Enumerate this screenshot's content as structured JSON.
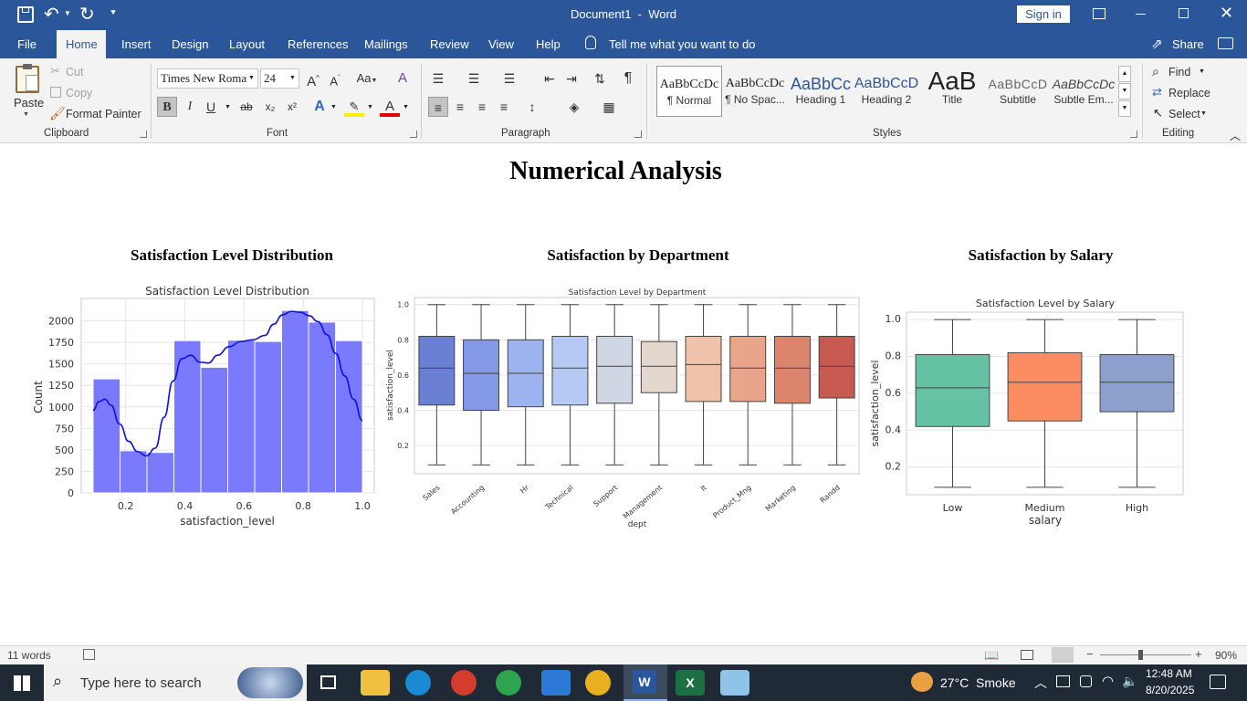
{
  "titlebar": {
    "title": "Document1  -  Word",
    "sign_in": "Sign in"
  },
  "tabs": [
    "File",
    "Home",
    "Insert",
    "Design",
    "Layout",
    "References",
    "Mailings",
    "Review",
    "View",
    "Help"
  ],
  "tell_me": "Tell me what you want to do",
  "share": "Share",
  "clipboard": {
    "paste": "Paste",
    "cut": "Cut",
    "copy": "Copy",
    "format_painter": "Format Painter",
    "label": "Clipboard"
  },
  "font": {
    "name": "Times New Roma",
    "size": "24",
    "label": "Font",
    "grow": "A^",
    "shrink": "Aˇ",
    "case": "Aa",
    "bold": "B",
    "italic": "I",
    "underline": "U",
    "strike": "ab",
    "sub": "x₂",
    "sup": "x²"
  },
  "paragraph": {
    "label": "Paragraph"
  },
  "styles": {
    "label": "Styles",
    "items": [
      {
        "preview": "AaBbCcDc",
        "name": "¶ Normal"
      },
      {
        "preview": "AaBbCcDc",
        "name": "¶ No Spac..."
      },
      {
        "preview": "AaBbCc",
        "name": "Heading 1"
      },
      {
        "preview": "AaBbCcD",
        "name": "Heading 2"
      },
      {
        "preview": "AaB",
        "name": "Title"
      },
      {
        "preview": "AaBbCcD",
        "name": "Subtitle"
      },
      {
        "preview": "AaBbCcDc",
        "name": "Subtle Em..."
      }
    ]
  },
  "editing": {
    "label": "Editing",
    "find": "Find",
    "replace": "Replace",
    "select": "Select"
  },
  "document": {
    "heading": "Numerical Analysis",
    "sections": [
      "Satisfaction Level Distribution",
      "Satisfaction by Department",
      "Satisfaction by Salary"
    ]
  },
  "status": {
    "words": "11 words",
    "zoom": "90%"
  },
  "taskbar": {
    "search": "Type here to search",
    "weather": "27°C  Smoke",
    "time": "12:48 AM",
    "date": "8/20/2025"
  },
  "colors": {
    "accent": "#2b579a",
    "hist": "#7a7aff",
    "kde": "#1010e0"
  },
  "chart_data": [
    {
      "type": "bar",
      "title": "Satisfaction Level Distribution",
      "xlabel": "satisfaction_level",
      "ylabel": "Count",
      "bin_edges": [
        0.09,
        0.181,
        0.272,
        0.363,
        0.454,
        0.545,
        0.636,
        0.727,
        0.818,
        0.909,
        1.0
      ],
      "values": [
        1325,
        490,
        470,
        1770,
        1460,
        1775,
        1760,
        2120,
        1985,
        1770
      ],
      "kde": [
        [
          0.09,
          960
        ],
        [
          0.11,
          1060
        ],
        [
          0.13,
          1090
        ],
        [
          0.15,
          1020
        ],
        [
          0.18,
          800
        ],
        [
          0.21,
          600
        ],
        [
          0.24,
          480
        ],
        [
          0.27,
          430
        ],
        [
          0.3,
          520
        ],
        [
          0.33,
          880
        ],
        [
          0.36,
          1300
        ],
        [
          0.39,
          1560
        ],
        [
          0.42,
          1600
        ],
        [
          0.45,
          1520
        ],
        [
          0.48,
          1510
        ],
        [
          0.51,
          1600
        ],
        [
          0.55,
          1700
        ],
        [
          0.59,
          1760
        ],
        [
          0.63,
          1780
        ],
        [
          0.67,
          1830
        ],
        [
          0.7,
          1960
        ],
        [
          0.73,
          2070
        ],
        [
          0.76,
          2110
        ],
        [
          0.79,
          2100
        ],
        [
          0.82,
          2060
        ],
        [
          0.85,
          1990
        ],
        [
          0.88,
          1840
        ],
        [
          0.91,
          1620
        ],
        [
          0.94,
          1360
        ],
        [
          0.97,
          1090
        ],
        [
          1.0,
          840
        ]
      ],
      "xlim": [
        0.05,
        1.04
      ],
      "ylim": [
        0,
        2260
      ],
      "xticks": [
        "0.2",
        "0.4",
        "0.6",
        "0.8",
        "1.0"
      ],
      "yticks": [
        "0",
        "250",
        "500",
        "750",
        "1000",
        "1250",
        "1500",
        "1750",
        "2000"
      ],
      "grid": true
    },
    {
      "type": "box",
      "title": "Satisfaction Level by Department",
      "xlabel": "dept",
      "ylabel": "satisfaction_level",
      "ylim": [
        0.04,
        1.04
      ],
      "yticks": [
        "0.2",
        "0.4",
        "0.6",
        "0.8",
        "1.0"
      ],
      "categories": [
        "Sales",
        "Accounting",
        "Hr",
        "Technical",
        "Support",
        "Management",
        "It",
        "Product_Mng",
        "Marketing",
        "Randd"
      ],
      "boxes": [
        {
          "min": 0.09,
          "q1": 0.43,
          "median": 0.64,
          "q3": 0.82,
          "max": 1.0,
          "color": "#6b7fd4"
        },
        {
          "min": 0.09,
          "q1": 0.4,
          "median": 0.61,
          "q3": 0.8,
          "max": 1.0,
          "color": "#8499e6"
        },
        {
          "min": 0.09,
          "q1": 0.42,
          "median": 0.61,
          "q3": 0.8,
          "max": 1.0,
          "color": "#9db3f0"
        },
        {
          "min": 0.09,
          "q1": 0.43,
          "median": 0.64,
          "q3": 0.82,
          "max": 1.0,
          "color": "#b6c9f4"
        },
        {
          "min": 0.09,
          "q1": 0.44,
          "median": 0.65,
          "q3": 0.82,
          "max": 1.0,
          "color": "#d0d6e4"
        },
        {
          "min": 0.09,
          "q1": 0.5,
          "median": 0.65,
          "q3": 0.79,
          "max": 1.0,
          "color": "#e4d7ce"
        },
        {
          "min": 0.09,
          "q1": 0.45,
          "median": 0.66,
          "q3": 0.82,
          "max": 1.0,
          "color": "#eec3aa"
        },
        {
          "min": 0.09,
          "q1": 0.45,
          "median": 0.64,
          "q3": 0.82,
          "max": 1.0,
          "color": "#e8a589"
        },
        {
          "min": 0.09,
          "q1": 0.44,
          "median": 0.64,
          "q3": 0.82,
          "max": 1.0,
          "color": "#dc856d"
        },
        {
          "min": 0.09,
          "q1": 0.47,
          "median": 0.65,
          "q3": 0.82,
          "max": 1.0,
          "color": "#c65950"
        }
      ],
      "grid": true
    },
    {
      "type": "box",
      "title": "Satisfaction Level by Salary",
      "xlabel": "salary",
      "ylabel": "satisfaction_level",
      "ylim": [
        0.05,
        1.04
      ],
      "yticks": [
        "0.2",
        "0.4",
        "0.6",
        "0.8",
        "1.0"
      ],
      "categories": [
        "Low",
        "Medium",
        "High"
      ],
      "boxes": [
        {
          "min": 0.09,
          "q1": 0.42,
          "median": 0.63,
          "q3": 0.81,
          "max": 1.0,
          "color": "#66c2a5"
        },
        {
          "min": 0.09,
          "q1": 0.45,
          "median": 0.66,
          "q3": 0.82,
          "max": 1.0,
          "color": "#fc8d62"
        },
        {
          "min": 0.09,
          "q1": 0.5,
          "median": 0.66,
          "q3": 0.81,
          "max": 1.0,
          "color": "#8da0cb"
        }
      ],
      "grid": true
    }
  ]
}
